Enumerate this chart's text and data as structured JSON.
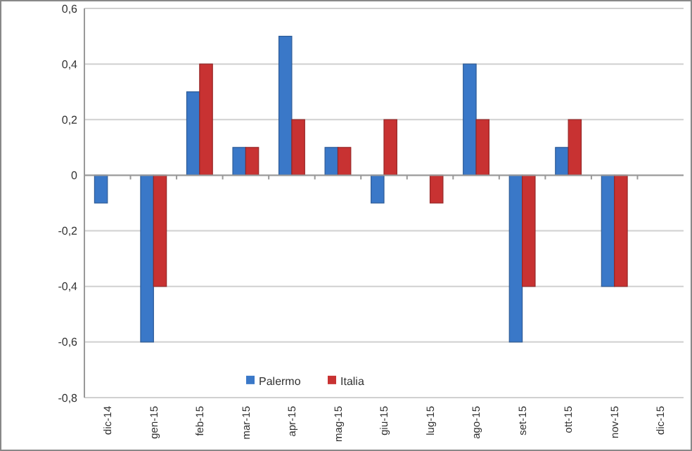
{
  "chart_data": {
    "type": "bar",
    "categories": [
      "dic-14",
      "gen-15",
      "feb-15",
      "mar-15",
      "apr-15",
      "mag-15",
      "giu-15",
      "lug-15",
      "ago-15",
      "set-15",
      "ott-15",
      "nov-15",
      "dic-15"
    ],
    "series": [
      {
        "name": "Palermo",
        "color": "#3a78c8",
        "values": [
          -0.1,
          -0.6,
          0.3,
          0.1,
          0.5,
          0.1,
          -0.1,
          null,
          0.4,
          -0.6,
          0.1,
          -0.4,
          null
        ]
      },
      {
        "name": "Italia",
        "color": "#c83232",
        "values": [
          null,
          -0.4,
          0.4,
          0.1,
          0.2,
          0.1,
          0.2,
          -0.1,
          0.2,
          -0.4,
          0.2,
          -0.4,
          null
        ]
      }
    ],
    "ylim": [
      -0.8,
      0.6
    ],
    "yticks": [
      {
        "value": -0.8,
        "label": "-0,8"
      },
      {
        "value": -0.6,
        "label": "-0,6"
      },
      {
        "value": -0.4,
        "label": "-0,4"
      },
      {
        "value": -0.2,
        "label": "-0,2"
      },
      0,
      {
        "value": 0.2,
        "label": "0,2"
      },
      {
        "value": 0.4,
        "label": "0,4"
      },
      {
        "value": 0.6,
        "label": "0,6"
      }
    ],
    "grid": "y",
    "legend": "bottom left"
  }
}
